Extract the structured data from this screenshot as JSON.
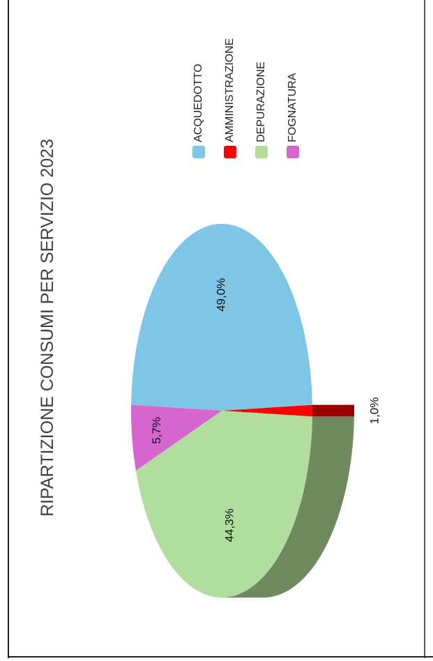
{
  "chart_data": {
    "type": "pie",
    "title": "RIPARTIZIONE CONSUMI PER SERVIZIO 2023",
    "categories": [
      "ACQUEDOTTO",
      "AMMINISTRAZIONE",
      "DEPURAZIONE",
      "FOGNATURA"
    ],
    "values": [
      49.0,
      1.0,
      44.3,
      5.7
    ],
    "data_labels": [
      "49,0%",
      "1,0%",
      "44,3%",
      "5,7%"
    ],
    "colors": [
      "#7fc5e6",
      "#ff0000",
      "#b1de9e",
      "#d466cd"
    ],
    "depth_colors": [
      "#35505f",
      "#990000",
      "#6f8a5f",
      "#8a3a85"
    ],
    "legend_position": "top-right",
    "orientation": "rotated-90-ccw",
    "three_d": true
  }
}
